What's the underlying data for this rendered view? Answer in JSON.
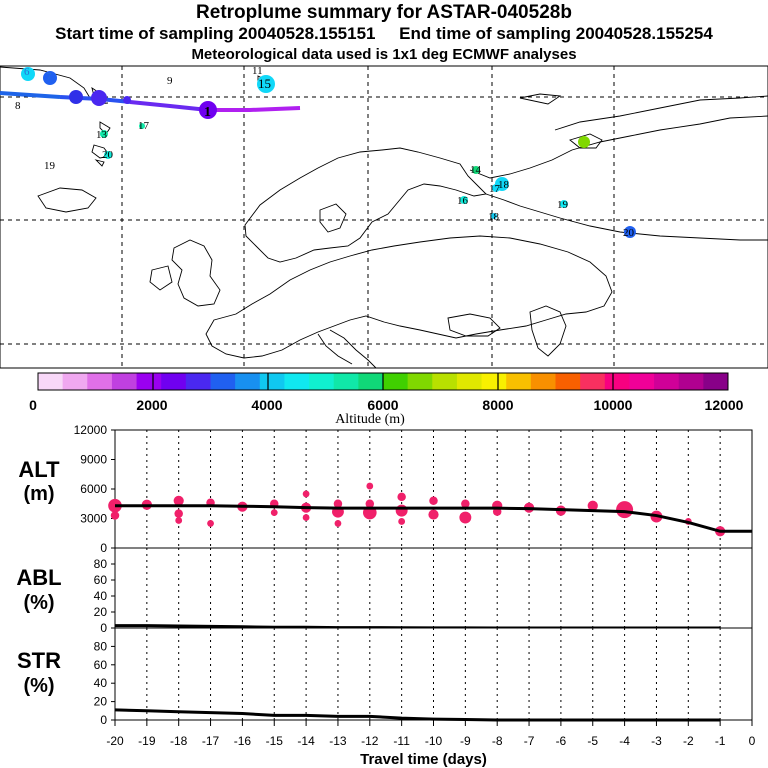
{
  "header": {
    "title": "Retroplume summary for ASTAR-040528b",
    "start_label": "Start time of sampling 20040528.155151",
    "end_label": "End time of sampling 20040528.155254",
    "met_label": "Meteorological data used is 1x1 deg ECMWF analyses"
  },
  "map": {
    "day_labels": [
      {
        "text": "6",
        "color": "#2a6fd8"
      },
      {
        "text": "7",
        "color": "#2a6fd8"
      },
      {
        "text": "8",
        "color": "#000000"
      },
      {
        "text": "9",
        "color": "#000000"
      },
      {
        "text": "11",
        "color": "#000000"
      },
      {
        "text": "15",
        "color": "#000000"
      },
      {
        "text": "1",
        "color": "#000000"
      },
      {
        "text": "13",
        "color": "#000000"
      },
      {
        "text": "17",
        "color": "#000000"
      },
      {
        "text": "19",
        "color": "#000000"
      },
      {
        "text": "20",
        "color": "#000000"
      },
      {
        "text": "14",
        "color": "#000000"
      },
      {
        "text": "18",
        "color": "#000000"
      },
      {
        "text": "17",
        "color": "#000000"
      },
      {
        "text": "16",
        "color": "#000000"
      },
      {
        "text": "18",
        "color": "#000000"
      },
      {
        "text": "19",
        "color": "#000000"
      },
      {
        "text": "20",
        "color": "#000000"
      }
    ]
  },
  "colorbar": {
    "ticks": [
      "0",
      "2000",
      "4000",
      "6000",
      "8000",
      "10000",
      "12000"
    ],
    "label": "Altitude (m)",
    "colors": [
      "#f8d8f8",
      "#f0a8f0",
      "#e070e8",
      "#c040e0",
      "#9a00f0",
      "#7000f0",
      "#4a28f0",
      "#2060f0",
      "#1890f0",
      "#10c8f0",
      "#10e8f0",
      "#10f0d0",
      "#10e8a8",
      "#10d878",
      "#40d000",
      "#80d800",
      "#b8e000",
      "#e0e800",
      "#f8f000",
      "#f8c000",
      "#f89000",
      "#f86000",
      "#f83060",
      "#f80080",
      "#f00098",
      "#d00098",
      "#b00090",
      "#880088"
    ]
  },
  "panels": {
    "alt_title": "ALT",
    "alt_unit": "(m)",
    "abl_title": "ABL",
    "abl_unit": "(%)",
    "str_title": "STR",
    "str_unit": "(%)"
  },
  "chart_data": [
    {
      "type": "line",
      "title": "ALT (m)",
      "ylim": [
        0,
        12000
      ],
      "yticks": [
        "0",
        "3000",
        "6000",
        "9000",
        "12000"
      ],
      "x": [
        -20,
        -19,
        -18,
        -17,
        -16,
        -15,
        -14,
        -13,
        -12,
        -11,
        -10,
        -9,
        -8,
        -7,
        -6,
        -5,
        -4,
        -3,
        -2,
        -1,
        0
      ],
      "series": [
        {
          "name": "mean altitude",
          "values": [
            4300,
            4300,
            4300,
            4300,
            4250,
            4200,
            4100,
            4050,
            4050,
            4050,
            4050,
            4050,
            4050,
            4000,
            3900,
            3800,
            3700,
            3300,
            2600,
            1700,
            1700
          ]
        }
      ],
      "scatter_points": [
        [
          -20,
          4300,
          8
        ],
        [
          -20,
          3300,
          5
        ],
        [
          -19,
          4400,
          6
        ],
        [
          -18,
          4800,
          6
        ],
        [
          -18,
          3500,
          5
        ],
        [
          -18,
          2800,
          4
        ],
        [
          -17,
          4600,
          5
        ],
        [
          -17,
          2500,
          4
        ],
        [
          -16,
          4200,
          6
        ],
        [
          -15,
          4500,
          5
        ],
        [
          -15,
          3600,
          4
        ],
        [
          -14,
          5500,
          4
        ],
        [
          -14,
          4100,
          6
        ],
        [
          -14,
          3100,
          4
        ],
        [
          -13,
          4500,
          5
        ],
        [
          -13,
          3700,
          7
        ],
        [
          -13,
          2500,
          4
        ],
        [
          -12,
          6300,
          4
        ],
        [
          -12,
          3600,
          8
        ],
        [
          -12,
          4500,
          5
        ],
        [
          -11,
          5200,
          5
        ],
        [
          -11,
          3800,
          7
        ],
        [
          -11,
          2700,
          4
        ],
        [
          -10,
          4800,
          5
        ],
        [
          -10,
          3400,
          6
        ],
        [
          -9,
          4500,
          5
        ],
        [
          -9,
          3100,
          7
        ],
        [
          -8,
          4300,
          6
        ],
        [
          -8,
          3700,
          5
        ],
        [
          -7,
          4100,
          6
        ],
        [
          -6,
          3800,
          6
        ],
        [
          -5,
          4300,
          6
        ],
        [
          -4,
          3900,
          10
        ],
        [
          -3,
          3200,
          7
        ],
        [
          -2,
          2700,
          4
        ],
        [
          -1,
          1700,
          6
        ]
      ]
    },
    {
      "type": "line",
      "title": "ABL (%)",
      "ylim": [
        0,
        100
      ],
      "yticks": [
        "0",
        "20",
        "40",
        "60",
        "80"
      ],
      "x": [
        -20,
        -19,
        -18,
        -17,
        -16,
        -15,
        -14,
        -13,
        -12,
        -11,
        -10,
        -9,
        -8,
        -7,
        -6,
        -5,
        -4,
        -3,
        -2,
        -1
      ],
      "series": [
        {
          "name": "ABL fraction",
          "values": [
            3,
            3,
            2.5,
            2,
            1.5,
            1,
            1,
            0.5,
            0.5,
            0.3,
            0.2,
            0.1,
            0,
            0,
            0,
            0,
            0,
            0,
            0,
            0
          ]
        }
      ]
    },
    {
      "type": "line",
      "title": "STR (%)",
      "ylim": [
        0,
        100
      ],
      "yticks": [
        "0",
        "20",
        "40",
        "60",
        "80"
      ],
      "x": [
        -20,
        -19,
        -18,
        -17,
        -16,
        -15,
        -14,
        -13,
        -12,
        -11,
        -10,
        -9,
        -8,
        -7,
        -6,
        -5,
        -4,
        -3,
        -2,
        -1
      ],
      "series": [
        {
          "name": "stratospheric fraction",
          "values": [
            11,
            10,
            9,
            8,
            7,
            5,
            5,
            4,
            4,
            2,
            1,
            0.5,
            0,
            0,
            0,
            0,
            0,
            0,
            0,
            0
          ]
        }
      ],
      "xlabel": "Travel time (days)",
      "xticks": [
        "-20",
        "-19",
        "-18",
        "-17",
        "-16",
        "-15",
        "-14",
        "-13",
        "-12",
        "-11",
        "-10",
        "-9",
        "-8",
        "-7",
        "-6",
        "-5",
        "-4",
        "-3",
        "-2",
        "-1",
        "0"
      ]
    }
  ]
}
